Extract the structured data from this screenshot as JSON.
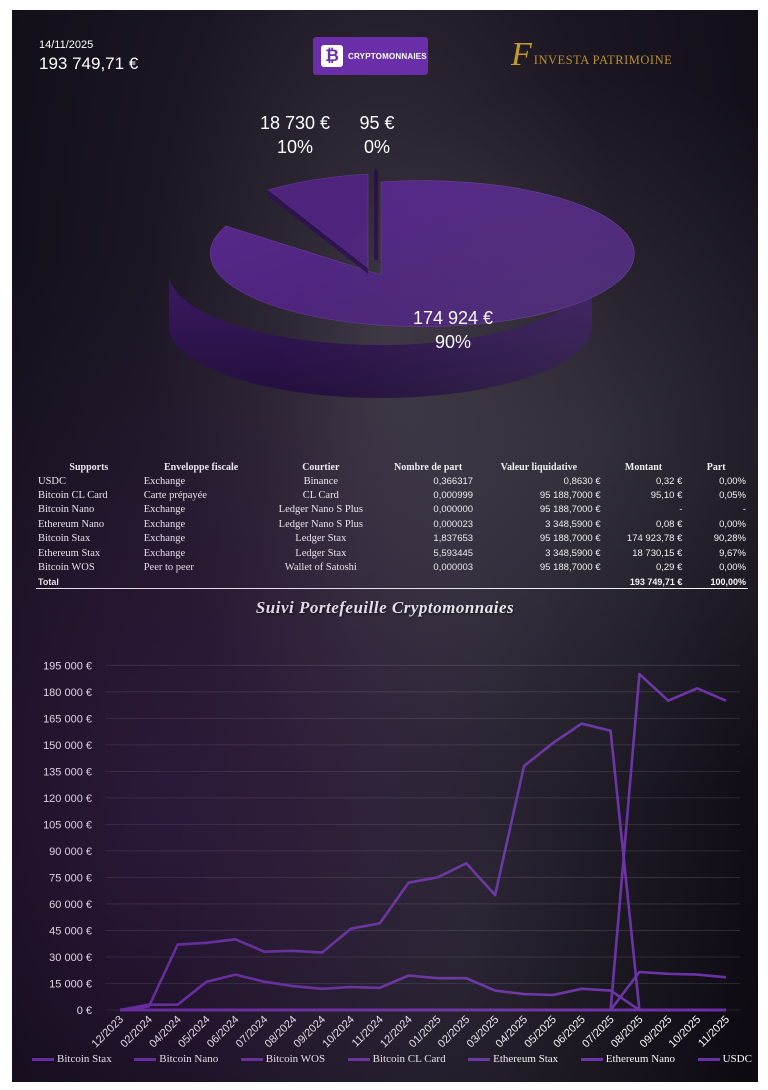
{
  "header": {
    "date": "14/11/2025",
    "total": "193 749,71 €",
    "badge_label": "CRYPTOMONNAIES",
    "brand_initial": "F",
    "brand_name": "INVESTA PATRIMOINE"
  },
  "pie": {
    "slices": [
      {
        "value_label": "174 924 €",
        "pct_label": "90%",
        "value": 174924
      },
      {
        "value_label": "18 730 €",
        "pct_label": "10%",
        "value": 18730
      },
      {
        "value_label": "95 €",
        "pct_label": "0%",
        "value": 95
      }
    ],
    "color": "#4a2077"
  },
  "table": {
    "headers": [
      "Supports",
      "Enveloppe fiscale",
      "Courtier",
      "Nombre de part",
      "Valeur liquidative",
      "Montant",
      "Part"
    ],
    "rows": [
      [
        "USDC",
        "Exchange",
        "Binance",
        "0,366317",
        "0,8630 €",
        "0,32 €",
        "0,00%"
      ],
      [
        "Bitcoin CL Card",
        "Carte prépayée",
        "CL Card",
        "0,000999",
        "95 188,7000 €",
        "95,10 €",
        "0,05%"
      ],
      [
        "Bitcoin Nano",
        "Exchange",
        "Ledger Nano S Plus",
        "0,000000",
        "95 188,7000 €",
        "-",
        "-"
      ],
      [
        "Ethereum Nano",
        "Exchange",
        "Ledger Nano S Plus",
        "0,000023",
        "3 348,5900 €",
        "0,08 €",
        "0,00%"
      ],
      [
        "Bitcoin Stax",
        "Exchange",
        "Ledger Stax",
        "1,837653",
        "95 188,7000 €",
        "174 923,78 €",
        "90,28%"
      ],
      [
        "Ethereum Stax",
        "Exchange",
        "Ledger Stax",
        "5,593445",
        "3 348,5900 €",
        "18 730,15 €",
        "9,67%"
      ],
      [
        "Bitcoin WOS",
        "Peer to peer",
        "Wallet of Satoshi",
        "0,000003",
        "95 188,7000 €",
        "0,29 €",
        "0,00%"
      ]
    ],
    "total_label": "Total",
    "total_amount": "193 749,71 €",
    "total_pct": "100,00%"
  },
  "chart_data": {
    "type": "line",
    "title": "Suivi Portefeuille Cryptomonnaies",
    "x": [
      "12/2023",
      "02/2024",
      "04/2024",
      "05/2024",
      "06/2024",
      "07/2024",
      "08/2024",
      "09/2024",
      "10/2024",
      "11/2024",
      "12/2024",
      "01/2025",
      "02/2025",
      "03/2025",
      "04/2025",
      "05/2025",
      "06/2025",
      "07/2025",
      "08/2025",
      "09/2025",
      "10/2025",
      "11/2025"
    ],
    "yticks": [
      0,
      15000,
      30000,
      45000,
      60000,
      75000,
      90000,
      105000,
      120000,
      135000,
      150000,
      165000,
      180000,
      195000
    ],
    "ytick_labels": [
      "0 €",
      "15 000 €",
      "30 000 €",
      "45 000 €",
      "60 000 €",
      "75 000 €",
      "90 000 €",
      "105 000 €",
      "120 000 €",
      "135 000 €",
      "150 000 €",
      "165 000 €",
      "180 000 €",
      "195 000 €"
    ],
    "ylim": [
      0,
      198000
    ],
    "series": [
      {
        "name": "Bitcoin Stax",
        "values": [
          0,
          0,
          0,
          0,
          0,
          0,
          0,
          0,
          0,
          0,
          0,
          0,
          0,
          0,
          0,
          0,
          0,
          0,
          190000,
          175000,
          182000,
          175000
        ]
      },
      {
        "name": "Bitcoin Nano",
        "values": [
          0,
          2000,
          37000,
          38000,
          40000,
          33000,
          33500,
          32500,
          46000,
          49000,
          72000,
          75000,
          83000,
          65000,
          138000,
          151000,
          162000,
          158000,
          0,
          0,
          0,
          0
        ]
      },
      {
        "name": "Bitcoin WOS",
        "values": [
          0,
          0,
          0,
          0,
          0,
          0,
          0,
          0,
          0,
          0,
          0,
          0,
          0,
          0,
          0,
          0,
          0,
          0,
          0,
          0,
          0,
          0
        ]
      },
      {
        "name": "Bitcoin CL Card",
        "values": [
          0,
          0,
          0,
          0,
          0,
          0,
          0,
          0,
          0,
          0,
          0,
          0,
          0,
          0,
          0,
          0,
          0,
          0,
          0,
          0,
          0,
          0
        ]
      },
      {
        "name": "Ethereum Stax",
        "values": [
          0,
          0,
          0,
          0,
          0,
          0,
          0,
          0,
          0,
          0,
          0,
          0,
          0,
          0,
          0,
          0,
          0,
          0,
          21500,
          20500,
          20000,
          18500
        ]
      },
      {
        "name": "Ethereum Nano",
        "values": [
          0,
          3000,
          3000,
          16000,
          20000,
          16000,
          13500,
          12000,
          13000,
          12500,
          19500,
          18000,
          18000,
          11000,
          9000,
          8500,
          12000,
          11000,
          0,
          0,
          0,
          0
        ]
      },
      {
        "name": "USDC",
        "values": [
          0,
          0,
          0,
          0,
          0,
          0,
          0,
          0,
          0,
          0,
          0,
          0,
          0,
          0,
          0,
          0,
          0,
          0,
          0,
          0,
          0,
          0
        ]
      }
    ],
    "color": "#6a2fa8",
    "legend_position": "bottom"
  }
}
